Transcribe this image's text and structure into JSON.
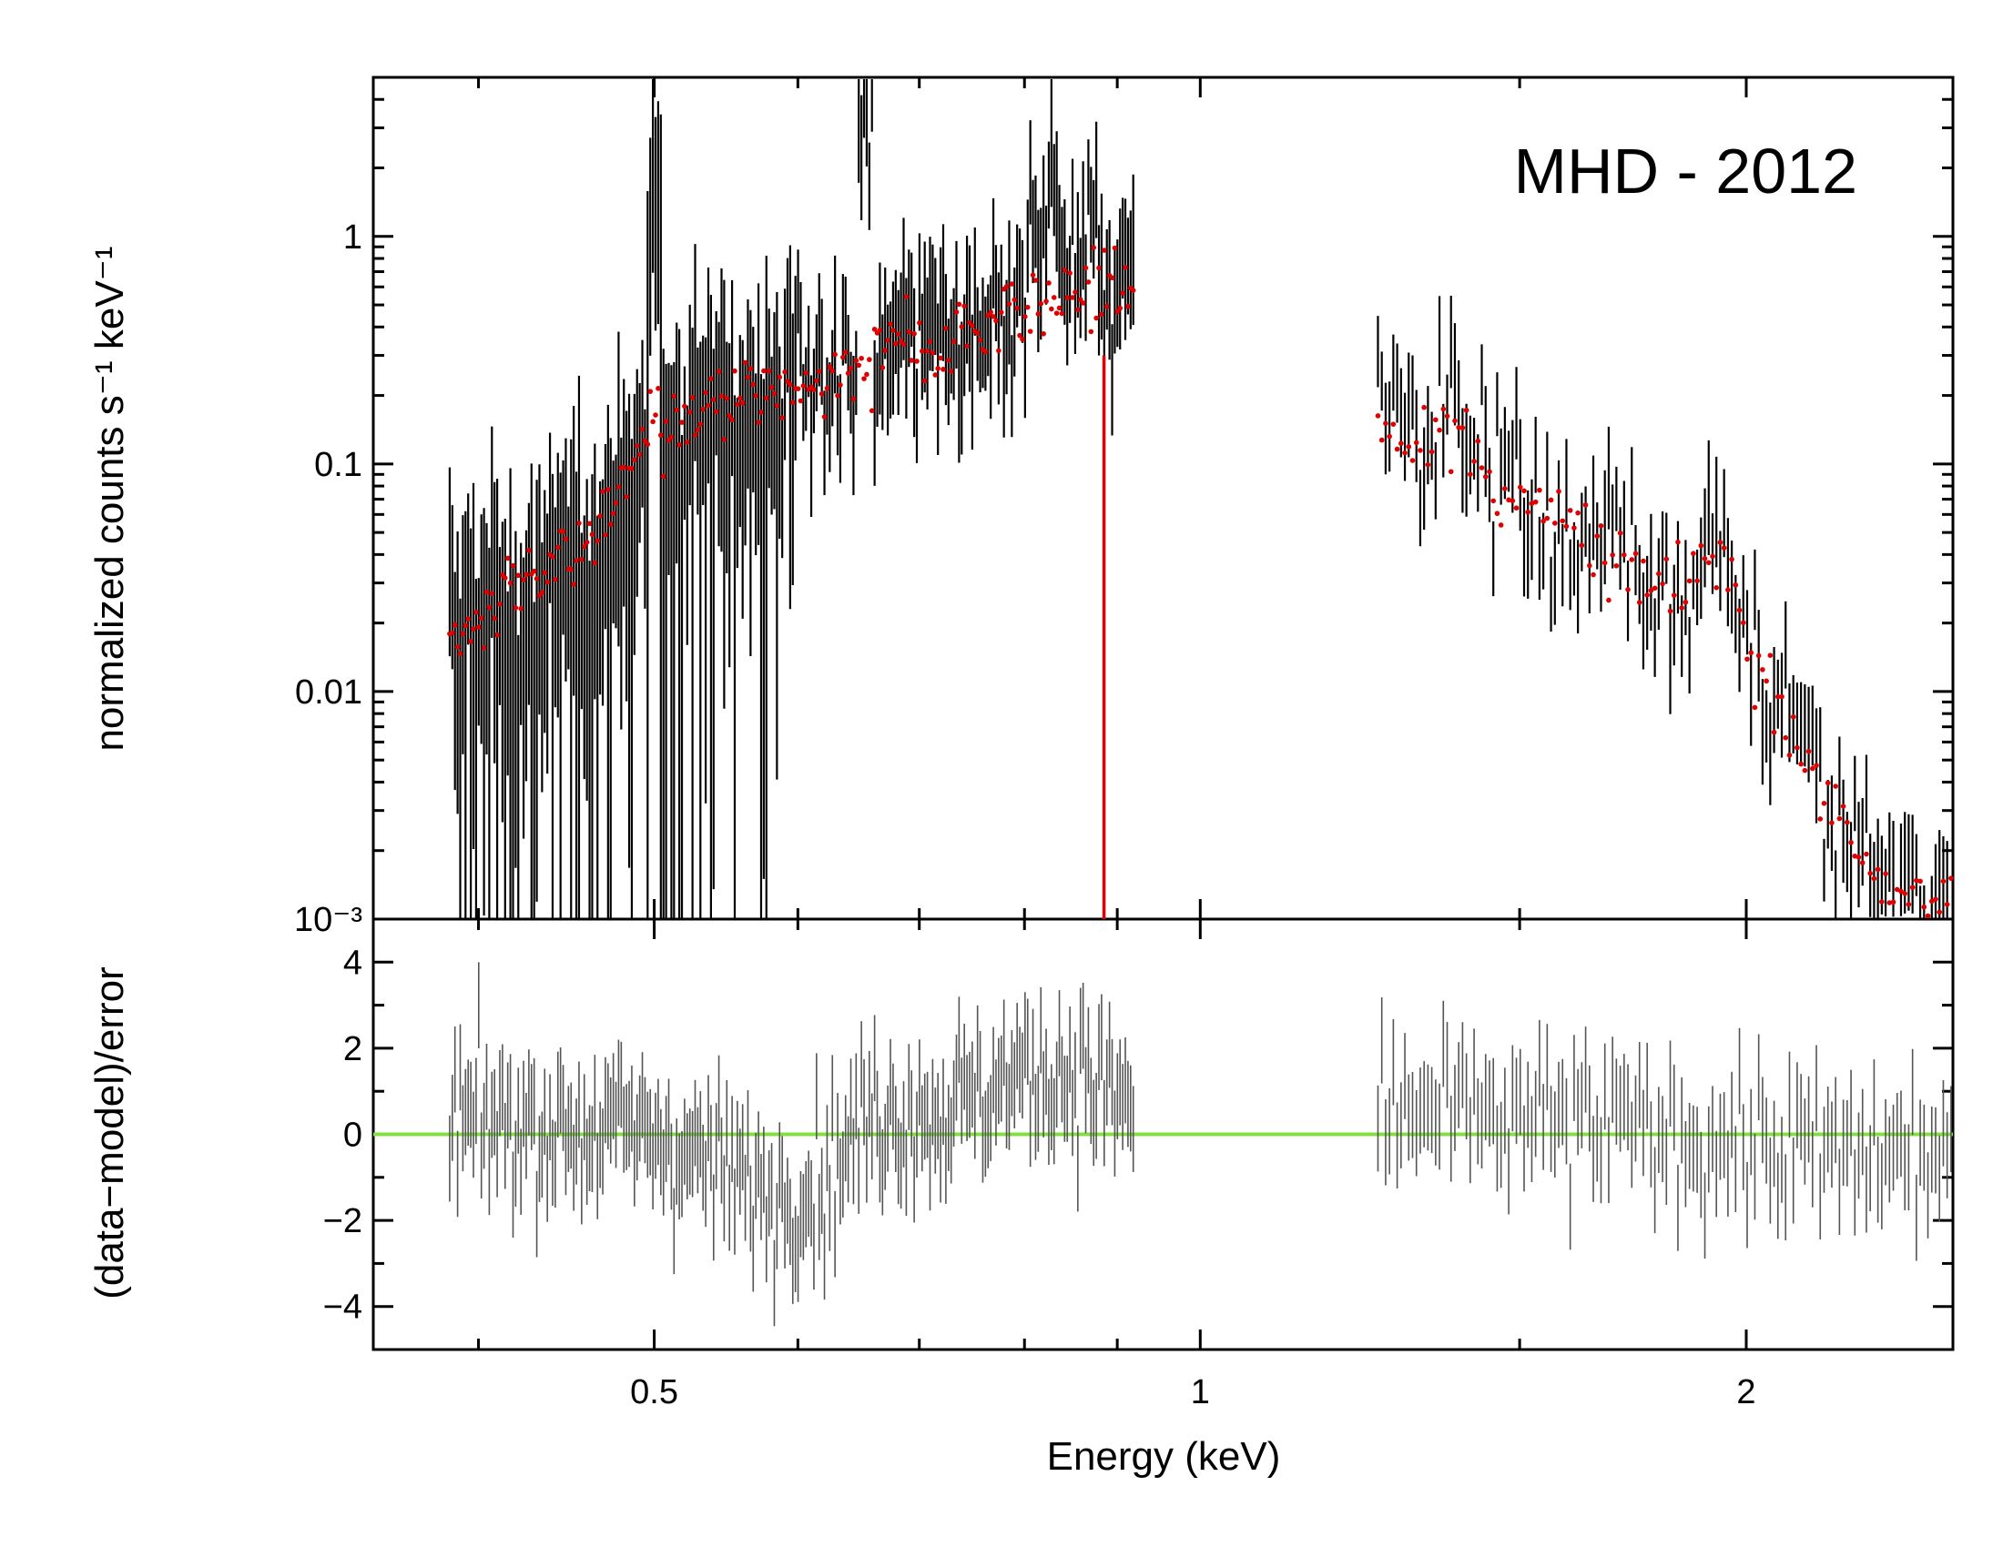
{
  "chart_data": [
    {
      "type": "scatter",
      "panel": "spectrum",
      "title": "MHD - 2012",
      "xlabel": "Energy (keV)",
      "ylabel": "normalized counts s⁻¹ keV⁻¹",
      "xscale": "log",
      "yscale": "log",
      "xlim": [
        0.35,
        2.6
      ],
      "ylim": [
        0.001,
        5
      ],
      "y_ticks": [
        {
          "value": 0.001,
          "label": "10⁻³"
        },
        {
          "value": 0.01,
          "label": "0.01"
        },
        {
          "value": 0.1,
          "label": "0.1"
        },
        {
          "value": 1,
          "label": "1"
        }
      ],
      "series": [
        {
          "name": "data",
          "color": "#000000",
          "segments": [
            {
              "x_range": [
                0.385,
                0.92
              ],
              "anchors": [
                [
                  0.385,
                  0.025
                ],
                [
                  0.42,
                  0.03
                ],
                [
                  0.45,
                  0.04
                ],
                [
                  0.48,
                  0.08
                ],
                [
                  0.5,
                  0.15
                ],
                [
                  0.55,
                  0.2
                ],
                [
                  0.6,
                  0.22
                ],
                [
                  0.65,
                  0.25
                ],
                [
                  0.68,
                  0.4
                ],
                [
                  0.72,
                  0.35
                ],
                [
                  0.76,
                  0.45
                ],
                [
                  0.8,
                  0.6
                ],
                [
                  0.85,
                  0.7
                ],
                [
                  0.88,
                  0.65
                ],
                [
                  0.92,
                  0.7
                ]
              ]
            },
            {
              "x_range": [
                1.25,
                2.6
              ],
              "anchors": [
                [
                  1.25,
                  0.2
                ],
                [
                  1.3,
                  0.15
                ],
                [
                  1.38,
                  0.18
                ],
                [
                  1.45,
                  0.09
                ],
                [
                  1.55,
                  0.07
                ],
                [
                  1.65,
                  0.05
                ],
                [
                  1.75,
                  0.035
                ],
                [
                  1.85,
                  0.03
                ],
                [
                  1.95,
                  0.05
                ],
                [
                  2.0,
                  0.018
                ],
                [
                  2.1,
                  0.009
                ],
                [
                  2.2,
                  0.004
                ],
                [
                  2.3,
                  0.0025
                ],
                [
                  2.45,
                  0.0015
                ],
                [
                  2.6,
                  0.0012
                ]
              ]
            }
          ],
          "peaks": [
            [
              0.5,
              2.5
            ],
            [
              0.654,
              3.6
            ],
            [
              0.826,
              2.0
            ],
            [
              0.875,
              1.3
            ],
            [
              0.81,
              1.2
            ]
          ]
        },
        {
          "name": "model",
          "color": "#e00000",
          "segments": [
            {
              "x_range": [
                0.385,
                0.92
              ],
              "anchors": [
                [
                  0.385,
                  0.015
                ],
                [
                  0.42,
                  0.03
                ],
                [
                  0.45,
                  0.04
                ],
                [
                  0.48,
                  0.08
                ],
                [
                  0.5,
                  0.15
                ],
                [
                  0.55,
                  0.2
                ],
                [
                  0.6,
                  0.22
                ],
                [
                  0.65,
                  0.25
                ],
                [
                  0.68,
                  0.35
                ],
                [
                  0.72,
                  0.3
                ],
                [
                  0.76,
                  0.4
                ],
                [
                  0.8,
                  0.5
                ],
                [
                  0.85,
                  0.6
                ],
                [
                  0.88,
                  0.55
                ],
                [
                  0.92,
                  0.6
                ]
              ]
            },
            {
              "x_range": [
                1.25,
                2.6
              ],
              "anchors": [
                [
                  1.25,
                  0.18
                ],
                [
                  1.3,
                  0.13
                ],
                [
                  1.38,
                  0.15
                ],
                [
                  1.45,
                  0.08
                ],
                [
                  1.55,
                  0.065
                ],
                [
                  1.65,
                  0.045
                ],
                [
                  1.75,
                  0.03
                ],
                [
                  1.85,
                  0.027
                ],
                [
                  1.95,
                  0.045
                ],
                [
                  2.0,
                  0.015
                ],
                [
                  2.1,
                  0.008
                ],
                [
                  2.2,
                  0.0035
                ],
                [
                  2.3,
                  0.002
                ],
                [
                  2.45,
                  0.0013
                ],
                [
                  2.6,
                  0.001
                ]
              ]
            }
          ],
          "spike": {
            "x": 0.885,
            "y": 0.3
          }
        }
      ]
    },
    {
      "type": "scatter",
      "panel": "residuals",
      "ylabel": "(data−model)/error",
      "xlabel": "Energy (keV)",
      "xscale": "log",
      "xlim": [
        0.35,
        2.6
      ],
      "ylim": [
        -5,
        5
      ],
      "x_ticks": [
        {
          "value": 0.5,
          "label": "0.5"
        },
        {
          "value": 1,
          "label": "1"
        },
        {
          "value": 2,
          "label": "2"
        }
      ],
      "y_ticks": [
        {
          "value": 4,
          "label": "4"
        },
        {
          "value": 2,
          "label": "2"
        },
        {
          "value": 0,
          "label": "0"
        },
        {
          "value": -2,
          "label": "−2"
        },
        {
          "value": -4,
          "label": "−4"
        }
      ],
      "zero_line": {
        "value": 0,
        "color": "#80e040"
      },
      "series": [
        {
          "name": "residuals",
          "color": "#555555",
          "segments": [
            {
              "x_range": [
                0.385,
                0.92
              ],
              "trend": [
                [
                  0.385,
                  0.3
                ],
                [
                  0.5,
                  0.0
                ],
                [
                  0.58,
                  -1.5
                ],
                [
                  0.62,
                  -1.0
                ],
                [
                  0.66,
                  0.5
                ],
                [
                  0.72,
                  0.5
                ],
                [
                  0.78,
                  1.2
                ],
                [
                  0.85,
                  1.5
                ],
                [
                  0.92,
                  0.5
                ]
              ]
            },
            {
              "x_range": [
                1.25,
                2.6
              ],
              "trend": [
                [
                  1.25,
                  0.5
                ],
                [
                  1.5,
                  0.3
                ],
                [
                  1.8,
                  0.0
                ],
                [
                  2.2,
                  -0.5
                ],
                [
                  2.6,
                  -0.5
                ]
              ]
            }
          ]
        }
      ]
    }
  ]
}
